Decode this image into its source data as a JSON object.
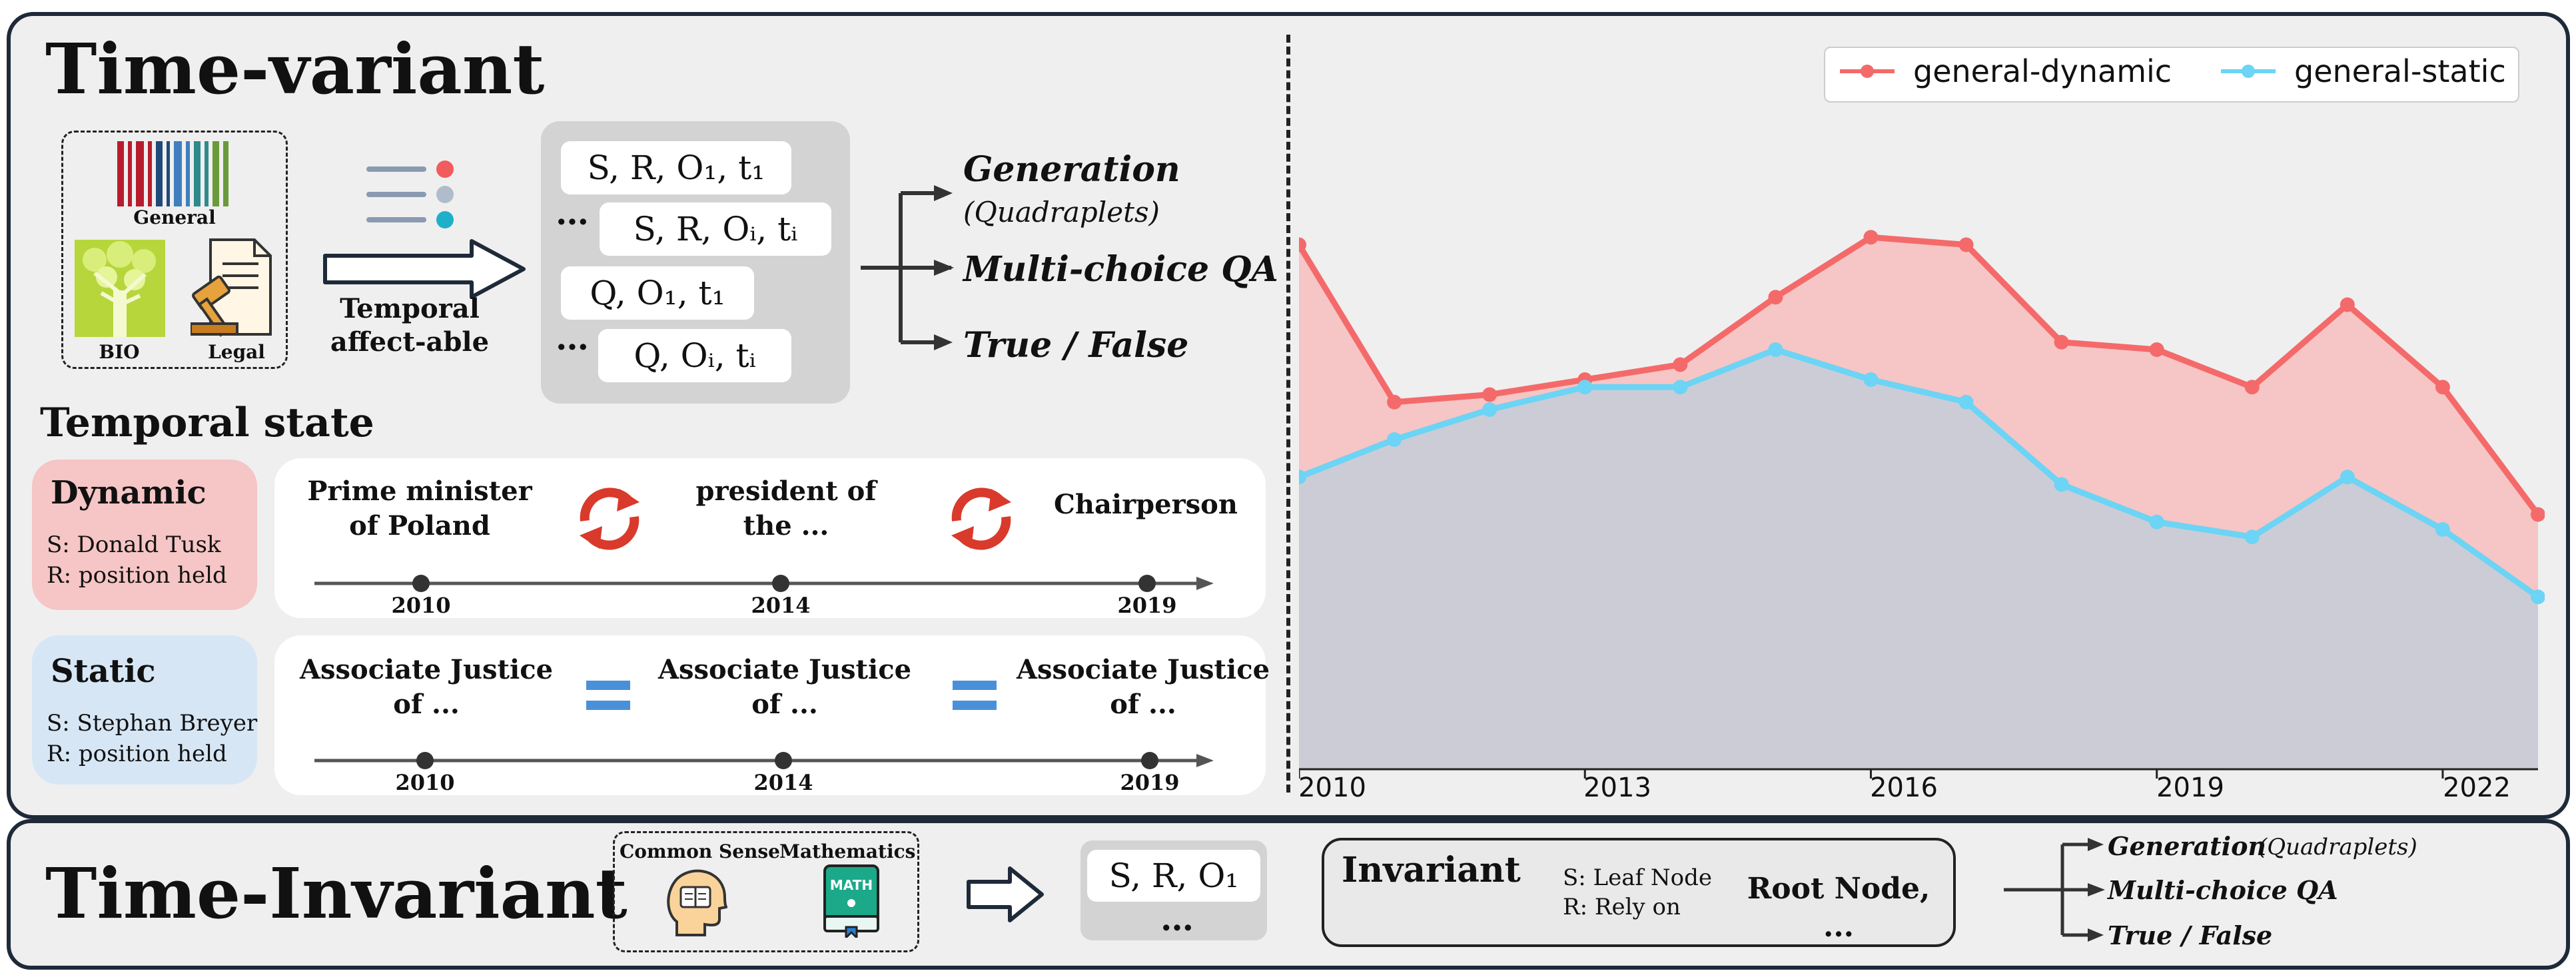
{
  "top": {
    "title": "Time-variant",
    "sources": [
      "General",
      "BIO",
      "Legal"
    ],
    "arrow_label_1": "Temporal",
    "arrow_label_2": "affect-able",
    "quads": {
      "row1": "S, R, O₁, t₁",
      "row2": "S, R, Oᵢ, tᵢ",
      "row3": "Q, O₁, t₁",
      "row4": "Q, Oᵢ, tᵢ",
      "ellipsis": "…"
    },
    "outputs": {
      "gen": "Generation",
      "gen_sub": "(Quadraplets)",
      "mcqa": "Multi-choice QA",
      "tf": "True / False"
    },
    "temporal_state_title": "Temporal state",
    "dynamic": {
      "name": "Dynamic",
      "s": "S: Donald Tusk",
      "r": "R: position held",
      "events": [
        "Prime minister\nof Poland",
        "president of\nthe ...",
        "Chairperson"
      ],
      "years": [
        "2010",
        "2014",
        "2019"
      ]
    },
    "static": {
      "name": "Static",
      "s": "S: Stephan Breyer",
      "r": "R: position held",
      "events": [
        "Associate Justice\nof ...",
        "Associate Justice\nof ...",
        "Associate Justice\nof ..."
      ],
      "years": [
        "2010",
        "2014",
        "2019"
      ]
    }
  },
  "chart_data": {
    "type": "area",
    "x": [
      2010,
      2011,
      2012,
      2013,
      2014,
      2015,
      2016,
      2017,
      2018,
      2019,
      2020,
      2021,
      2022,
      2023
    ],
    "xticks": [
      "2010",
      "2013",
      "2016",
      "2019",
      "2022"
    ],
    "ylim": [
      0,
      100
    ],
    "series": [
      {
        "name": "general-dynamic",
        "color": "#f46a6a",
        "values": [
          70,
          49,
          50,
          52,
          54,
          63,
          71,
          70,
          57,
          56,
          51,
          62,
          51,
          34
        ]
      },
      {
        "name": "general-static",
        "color": "#6cd4f5",
        "values": [
          39,
          44,
          48,
          51,
          51,
          56,
          52,
          49,
          38,
          33,
          31,
          39,
          32,
          23
        ]
      }
    ],
    "legend": "top-right",
    "grid": false
  },
  "bottom": {
    "title": "Time-Invariant",
    "sources": [
      "Common Sense",
      "Mathematics"
    ],
    "math_icon_text": "MATH",
    "triple": "S, R, O₁",
    "ellipsis": "…",
    "invariant": {
      "name": "Invariant",
      "s": "S: Leaf Node",
      "r": "R: Rely on",
      "value": "Root Node, ..."
    },
    "outputs": {
      "gen": "Generation",
      "gen_sub": "(Quadraplets)",
      "mcqa": "Multi-choice QA",
      "tf": "True / False"
    }
  }
}
